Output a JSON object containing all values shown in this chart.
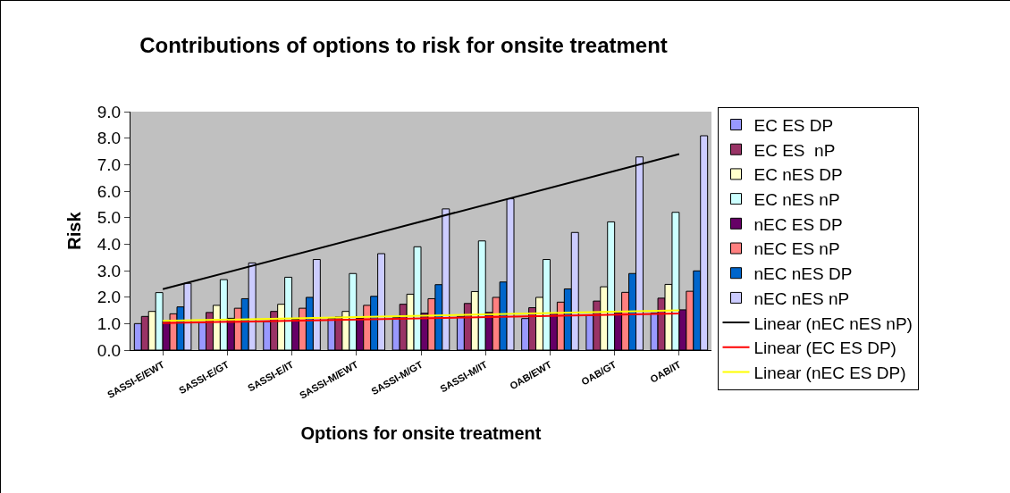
{
  "chart_data": {
    "type": "bar",
    "title": "Contributions of options to risk for onsite treatment",
    "xlabel": "Options for onsite treatment",
    "ylabel": "Risk",
    "categories": [
      "SASSI-E/EWT",
      "SASSI-E/GT",
      "SASSI-E/IT",
      "SASSI-M/EWT",
      "SASSI-M/GT",
      "SASSI-M/IT",
      "OAB/EWT",
      "OAB/GT",
      "OAB/IT"
    ],
    "series": [
      {
        "name": "EC ES DP",
        "color": "#9999ff",
        "values": [
          1.0,
          1.05,
          1.08,
          1.19,
          1.22,
          1.27,
          1.19,
          1.3,
          1.4
        ]
      },
      {
        "name": "EC ES  nP",
        "color": "#993366",
        "values": [
          1.27,
          1.42,
          1.46,
          1.25,
          1.73,
          1.76,
          1.6,
          1.85,
          1.96
        ]
      },
      {
        "name": "EC nES DP",
        "color": "#ffffcc",
        "values": [
          1.46,
          1.69,
          1.73,
          1.46,
          2.11,
          2.21,
          1.99,
          2.39,
          2.48
        ]
      },
      {
        "name": "EC nES nP",
        "color": "#ccffff",
        "values": [
          2.17,
          2.66,
          2.75,
          2.89,
          3.9,
          4.12,
          3.42,
          4.84,
          5.2
        ]
      },
      {
        "name": "nEC ES DP",
        "color": "#660066",
        "values": [
          1.1,
          1.2,
          1.17,
          1.2,
          1.39,
          1.42,
          1.4,
          1.42,
          1.52
        ]
      },
      {
        "name": "nEC ES nP",
        "color": "#ff8080",
        "values": [
          1.37,
          1.58,
          1.58,
          1.69,
          1.94,
          1.99,
          1.81,
          2.18,
          2.22
        ]
      },
      {
        "name": "nEC nES DP",
        "color": "#0066cc",
        "values": [
          1.63,
          1.94,
          1.99,
          2.03,
          2.47,
          2.57,
          2.31,
          2.89,
          2.99
        ]
      },
      {
        "name": "nEC nES nP",
        "color": "#ccccff",
        "values": [
          2.52,
          3.29,
          3.42,
          3.64,
          5.33,
          5.71,
          4.44,
          7.29,
          8.09
        ]
      },
      {
        "name": "Linear (nEC nES nP)",
        "type": "line",
        "color": "#000000",
        "x": [
          "SASSI-E/EWT",
          "OAB/IT"
        ],
        "values": [
          2.3,
          7.4
        ]
      },
      {
        "name": "Linear (EC ES DP)",
        "type": "line",
        "color": "#ff0000",
        "x": [
          "SASSI-E/EWT",
          "OAB/IT"
        ],
        "values": [
          1.02,
          1.38
        ]
      },
      {
        "name": "Linear (nEC ES DP)",
        "type": "line",
        "color": "#ffff00",
        "x": [
          "SASSI-E/EWT",
          "OAB/IT"
        ],
        "values": [
          1.1,
          1.5
        ]
      }
    ],
    "ylim": [
      0,
      9
    ],
    "yticks": [
      {
        "value": 0,
        "label": "0.0"
      },
      {
        "value": 1,
        "label": "1.0"
      },
      {
        "value": 2,
        "label": "2.0"
      },
      {
        "value": 3,
        "label": "3.0"
      },
      {
        "value": 4,
        "label": "4.0"
      },
      {
        "value": 5,
        "label": "5.0"
      },
      {
        "value": 6,
        "label": "6.0"
      },
      {
        "value": 7,
        "label": "7.0"
      },
      {
        "value": 8,
        "label": "8.0"
      },
      {
        "value": 9,
        "label": "9.0"
      }
    ],
    "grid": false,
    "legend": "right",
    "marker": "none",
    "line_style": "solid"
  }
}
